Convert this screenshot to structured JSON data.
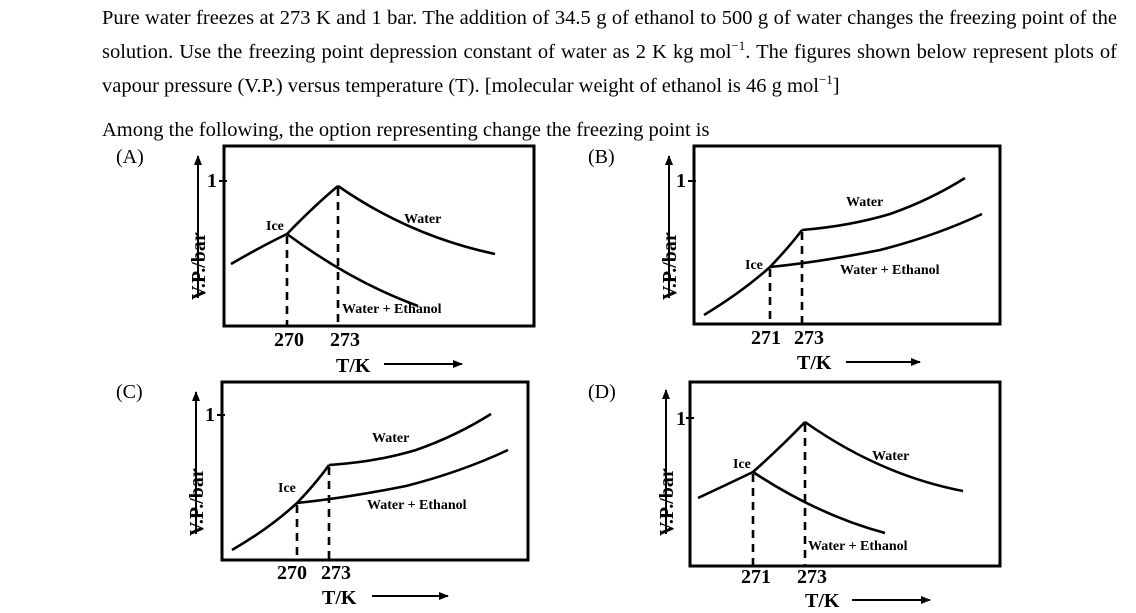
{
  "question": {
    "line1": "Pure water freezes at 273 K and 1 bar. The addition of  34.5 g of ethanol to  500 g of water changes the freezing point of the solution. Use the freezing point depression constant of water as 2 K kg mol",
    "sup1": "−1",
    "line1_end": ". The figures shown below represent plots of vapour pressure (V.P.) versus temperature (T). [molecular weight of ethanol is 46 g mol",
    "sup2": "−1",
    "line1_close": "]",
    "prompt": "Among the following, the option representing change the freezing point is"
  },
  "options": [
    {
      "label": "(A)",
      "ice": "Ice",
      "water": "Water",
      "solution": "Water + Ethanol",
      "t_low": "270",
      "t_high": "273",
      "y_tick": "1",
      "ylabel": "V.P./bar",
      "xlabel": "T/K"
    },
    {
      "label": "(B)",
      "ice": "Ice",
      "water": "Water",
      "solution": "Water + Ethanol",
      "t_low": "271",
      "t_high": "273",
      "y_tick": "1",
      "ylabel": "V.P./bar",
      "xlabel": "T/K"
    },
    {
      "label": "(C)",
      "ice": "Ice",
      "water": "Water",
      "solution": "Water + Ethanol",
      "t_low": "270",
      "t_high": "273",
      "y_tick": "1",
      "ylabel": "V.P./bar",
      "xlabel": "T/K"
    },
    {
      "label": "(D)",
      "ice": "Ice",
      "water": "Water",
      "solution": "Water + Ethanol",
      "t_low": "271",
      "t_high": "273",
      "y_tick": "1",
      "ylabel": "V.P./bar",
      "xlabel": "T/K"
    }
  ]
}
